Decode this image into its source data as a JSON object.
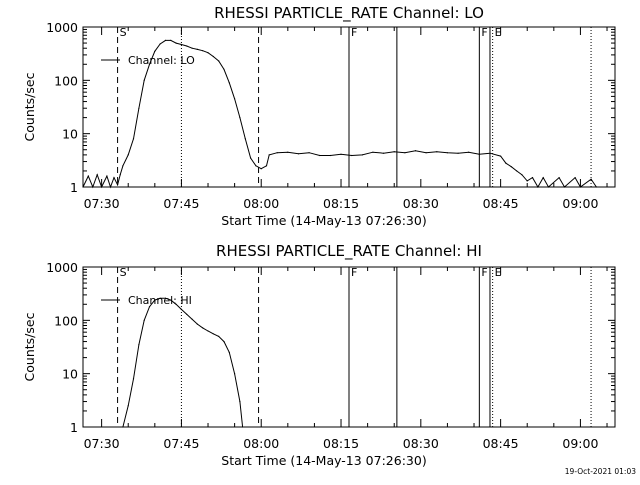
{
  "chart_data": [
    {
      "type": "line",
      "title": "RHESSI PARTICLE_RATE Channel: LO",
      "ylabel": "Counts/sec",
      "xlabel": "Start Time (14-May-13 07:26:30)",
      "x_ticks": [
        "07:30",
        "07:45",
        "08:00",
        "08:15",
        "08:30",
        "08:45",
        "09:00"
      ],
      "xlim": [
        "07:26:30",
        "09:06:30"
      ],
      "y_scale": "log",
      "ylim": [
        1,
        1000
      ],
      "y_ticks": [
        "1",
        "10",
        "100",
        "1000"
      ],
      "legend": "top-left",
      "series": [
        {
          "name": "Channel: LO",
          "color": "#000000",
          "points": [
            [
              "07:26:30",
              1
            ],
            [
              "07:27:30",
              1.6
            ],
            [
              "07:28:20",
              1
            ],
            [
              "07:29:10",
              1.7
            ],
            [
              "07:30:00",
              1
            ],
            [
              "07:31:00",
              1.6
            ],
            [
              "07:31:40",
              1
            ],
            [
              "07:32:20",
              1.5
            ],
            [
              "07:33:00",
              1.1
            ],
            [
              "07:33:30",
              1.7
            ],
            [
              "07:34:00",
              2.5
            ],
            [
              "07:35:00",
              4
            ],
            [
              "07:36:00",
              8
            ],
            [
              "07:37:00",
              30
            ],
            [
              "07:38:00",
              100
            ],
            [
              "07:39:00",
              200
            ],
            [
              "07:40:00",
              350
            ],
            [
              "07:41:00",
              480
            ],
            [
              "07:42:00",
              560
            ],
            [
              "07:43:00",
              560
            ],
            [
              "07:44:00",
              500
            ],
            [
              "07:45:00",
              470
            ],
            [
              "07:46:00",
              440
            ],
            [
              "07:47:00",
              400
            ],
            [
              "07:48:00",
              380
            ],
            [
              "07:49:00",
              360
            ],
            [
              "07:50:00",
              330
            ],
            [
              "07:51:00",
              280
            ],
            [
              "07:52:00",
              230
            ],
            [
              "07:53:00",
              160
            ],
            [
              "07:54:00",
              90
            ],
            [
              "07:55:00",
              45
            ],
            [
              "07:56:00",
              20
            ],
            [
              "07:57:00",
              8
            ],
            [
              "07:58:00",
              3.5
            ],
            [
              "07:59:00",
              2.5
            ],
            [
              "08:00:00",
              2.2
            ],
            [
              "08:01:00",
              2.5
            ],
            [
              "08:01:30",
              4
            ],
            [
              "08:03:00",
              4.4
            ],
            [
              "08:05:00",
              4.5
            ],
            [
              "08:07:00",
              4.2
            ],
            [
              "08:09:00",
              4.4
            ],
            [
              "08:11:00",
              3.9
            ],
            [
              "08:13:00",
              3.9
            ],
            [
              "08:15:00",
              4.1
            ],
            [
              "08:17:00",
              3.9
            ],
            [
              "08:19:00",
              4
            ],
            [
              "08:21:00",
              4.5
            ],
            [
              "08:23:00",
              4.3
            ],
            [
              "08:25:00",
              4.6
            ],
            [
              "08:27:00",
              4.4
            ],
            [
              "08:29:00",
              4.8
            ],
            [
              "08:31:00",
              4.4
            ],
            [
              "08:33:00",
              4.6
            ],
            [
              "08:35:00",
              4.4
            ],
            [
              "08:37:00",
              4.3
            ],
            [
              "08:39:00",
              4.5
            ],
            [
              "08:41:00",
              4.1
            ],
            [
              "08:43:00",
              4.3
            ],
            [
              "08:45:00",
              3.8
            ],
            [
              "08:46:00",
              2.8
            ],
            [
              "08:47:00",
              2.4
            ],
            [
              "08:48:00",
              2
            ],
            [
              "08:49:00",
              1.7
            ],
            [
              "08:50:00",
              1.3
            ],
            [
              "08:51:00",
              1.5
            ],
            [
              "08:52:00",
              1
            ],
            [
              "08:53:00",
              1.5
            ],
            [
              "08:54:00",
              1
            ],
            [
              "08:56:00",
              1.5
            ],
            [
              "08:57:00",
              1
            ],
            [
              "08:59:00",
              1.5
            ],
            [
              "09:00:00",
              1
            ],
            [
              "09:02:00",
              1.4
            ],
            [
              "09:03:00",
              1
            ]
          ]
        }
      ],
      "markers": [
        {
          "time": "07:33:00",
          "style": "dashed",
          "label": "S"
        },
        {
          "time": "07:45:00",
          "style": "dotted",
          "label": ""
        },
        {
          "time": "07:59:30",
          "style": "dashed",
          "label": ""
        },
        {
          "time": "08:16:30",
          "style": "solid",
          "label": "F"
        },
        {
          "time": "08:25:30",
          "style": "solid",
          "label": ""
        },
        {
          "time": "08:41:00",
          "style": "solid",
          "label": "F"
        },
        {
          "time": "08:43:00",
          "style": "solid",
          "label": ""
        },
        {
          "time": "08:43:30",
          "style": "dotted",
          "label": "E"
        },
        {
          "time": "09:02:00",
          "style": "dotted",
          "label": ""
        }
      ]
    },
    {
      "type": "line",
      "title": "RHESSI PARTICLE_RATE Channel: HI",
      "ylabel": "Counts/sec",
      "xlabel": "Start Time (14-May-13 07:26:30)",
      "x_ticks": [
        "07:30",
        "07:45",
        "08:00",
        "08:15",
        "08:30",
        "08:45",
        "09:00"
      ],
      "xlim": [
        "07:26:30",
        "09:06:30"
      ],
      "y_scale": "log",
      "ylim": [
        1,
        1000
      ],
      "y_ticks": [
        "1",
        "10",
        "100",
        "1000"
      ],
      "legend": "top-left",
      "series": [
        {
          "name": "Channel: HI",
          "color": "#000000",
          "points": [
            [
              "07:34:00",
              1
            ],
            [
              "07:35:00",
              2.5
            ],
            [
              "07:36:00",
              8
            ],
            [
              "07:37:00",
              35
            ],
            [
              "07:38:00",
              100
            ],
            [
              "07:39:00",
              180
            ],
            [
              "07:40:00",
              240
            ],
            [
              "07:41:00",
              260
            ],
            [
              "07:42:00",
              260
            ],
            [
              "07:43:00",
              240
            ],
            [
              "07:44:00",
              200
            ],
            [
              "07:45:00",
              160
            ],
            [
              "07:46:00",
              130
            ],
            [
              "07:47:00",
              105
            ],
            [
              "07:48:00",
              85
            ],
            [
              "07:49:00",
              72
            ],
            [
              "07:50:00",
              63
            ],
            [
              "07:51:00",
              56
            ],
            [
              "07:52:00",
              50
            ],
            [
              "07:53:00",
              40
            ],
            [
              "07:54:00",
              25
            ],
            [
              "07:55:00",
              10
            ],
            [
              "07:56:00",
              3
            ],
            [
              "07:56:30",
              1
            ]
          ]
        }
      ],
      "markers": [
        {
          "time": "07:33:00",
          "style": "dashed",
          "label": "S"
        },
        {
          "time": "07:45:00",
          "style": "dotted",
          "label": ""
        },
        {
          "time": "07:59:30",
          "style": "dashed",
          "label": ""
        },
        {
          "time": "08:16:30",
          "style": "solid",
          "label": "F"
        },
        {
          "time": "08:25:30",
          "style": "solid",
          "label": ""
        },
        {
          "time": "08:41:00",
          "style": "solid",
          "label": "F"
        },
        {
          "time": "08:43:00",
          "style": "solid",
          "label": ""
        },
        {
          "time": "08:43:30",
          "style": "dotted",
          "label": "E"
        },
        {
          "time": "09:02:00",
          "style": "dotted",
          "label": ""
        }
      ]
    }
  ],
  "footer": {
    "timestamp": "19-Oct-2021 01:03"
  }
}
